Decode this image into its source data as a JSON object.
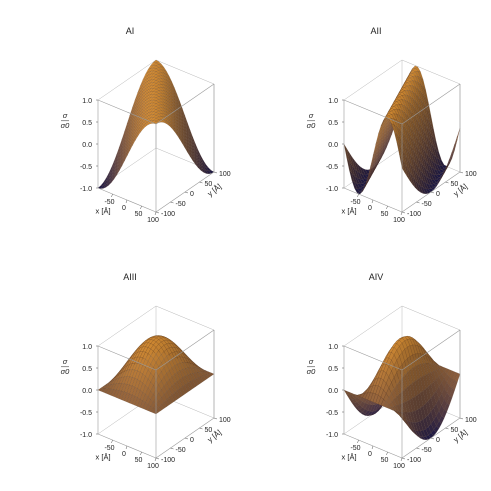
{
  "figure": {
    "panels": [
      {
        "title": "AI"
      },
      {
        "title": "AII"
      },
      {
        "title": "AIII"
      },
      {
        "title": "AIV"
      }
    ]
  },
  "colors": {
    "surface_high": "#f6a23a",
    "surface_low": "#1d1a55",
    "mesh": "#4a3020",
    "box": "#9a9a9a"
  },
  "chart_data": [
    {
      "type": "surface",
      "title": "AI",
      "xlabel": "x [Å]",
      "ylabel": "y [Å]",
      "zlabel_num": "σ",
      "zlabel_den": "σ0",
      "xlim": [
        -100,
        100
      ],
      "ylim": [
        -100,
        100
      ],
      "zlim": [
        -1,
        1
      ],
      "x_ticks": [
        -50,
        0,
        50,
        100
      ],
      "y_ticks": [
        -100,
        -50,
        0,
        50,
        100
      ],
      "z_ticks": [
        "-1.0",
        "-0.5",
        "0.0",
        "0.5",
        "1.0"
      ],
      "function": "cos(pi*(x+y)/200)",
      "kx": 1,
      "ky": 1,
      "period_A": 200
    },
    {
      "type": "surface",
      "title": "AII",
      "xlabel": "x [Å]",
      "ylabel": "y [Å]",
      "zlabel_num": "σ",
      "zlabel_den": "σ0",
      "xlim": [
        -100,
        100
      ],
      "ylim": [
        -100,
        100
      ],
      "zlim": [
        -1,
        1
      ],
      "x_ticks": [
        -50,
        0,
        50,
        100
      ],
      "y_ticks": [
        -100,
        -50,
        0,
        50,
        100
      ],
      "z_ticks": [
        "-1.0",
        "-0.5",
        "0.0",
        "0.5",
        "1.0"
      ],
      "function": "cos(pi*(2x+y)/200)",
      "kx": 2,
      "ky": 1,
      "period_A": 200
    },
    {
      "type": "surface",
      "title": "AIII",
      "xlabel": "x [Å]",
      "ylabel": "y [Å]",
      "zlabel_num": "σ",
      "zlabel_den": "σ0",
      "xlim": [
        -100,
        100
      ],
      "ylim": [
        -100,
        100
      ],
      "zlim": [
        -1,
        1
      ],
      "x_ticks": [
        -50,
        0,
        50,
        100
      ],
      "y_ticks": [
        -100,
        -50,
        0,
        50,
        100
      ],
      "z_ticks": [
        "-1.0",
        "-0.5",
        "0.0",
        "0.5",
        "1.0"
      ],
      "function": "0.5*(cos(pi*(x+y)/200)+cos(pi*(x-y)/200))",
      "kx": 1,
      "ky": 1,
      "period_A": 200
    },
    {
      "type": "surface",
      "title": "AIV",
      "xlabel": "x [Å]",
      "ylabel": "y [Å]",
      "zlabel_num": "σ",
      "zlabel_den": "σ0",
      "xlim": [
        -100,
        100
      ],
      "ylim": [
        -100,
        100
      ],
      "zlim": [
        -1,
        1
      ],
      "x_ticks": [
        -50,
        0,
        50,
        100
      ],
      "y_ticks": [
        -100,
        -50,
        0,
        50,
        100
      ],
      "z_ticks": [
        "-1.0",
        "-0.5",
        "0.0",
        "0.5",
        "1.0"
      ],
      "function": "0.5*(cos(pi*(2x+y)/200)+cos(pi*(2x-y)/200))",
      "kx": 2,
      "ky": 1,
      "period_A": 200
    }
  ]
}
